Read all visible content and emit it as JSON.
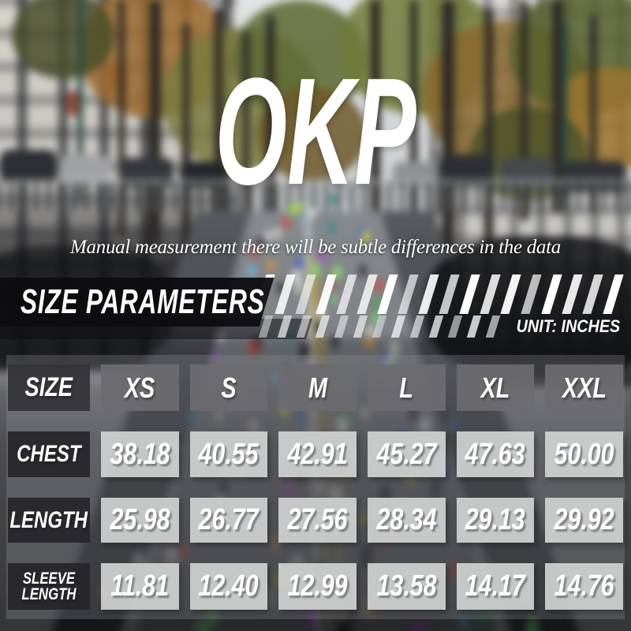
{
  "brand": "OKP",
  "note": "Manual measurement there will be subtle differences in the data",
  "banner": {
    "title": "SIZE PARAMETERS",
    "unit_label": "UNIT: INCHES"
  },
  "chart_data": {
    "type": "table",
    "title": "SIZE PARAMETERS",
    "unit": "INCHES",
    "columns": [
      "SIZE",
      "XS",
      "S",
      "M",
      "L",
      "XL",
      "XXL"
    ],
    "rows": [
      {
        "label": "CHEST",
        "values": [
          "38.18",
          "40.55",
          "42.91",
          "45.27",
          "47.63",
          "50.00"
        ]
      },
      {
        "label": "LENGTH",
        "values": [
          "25.98",
          "26.77",
          "27.56",
          "28.34",
          "29.13",
          "29.92"
        ]
      },
      {
        "label": "SLEEVE LENGTH",
        "values": [
          "11.81",
          "12.40",
          "12.99",
          "13.58",
          "14.17",
          "14.76"
        ]
      }
    ]
  },
  "colors": {
    "text": "#ffffff",
    "banner_plate": "#0d0d11",
    "size_header_cell": "#6c6c70",
    "row_label_cell": "#26262a",
    "value_cell": "#d0d2d1"
  }
}
